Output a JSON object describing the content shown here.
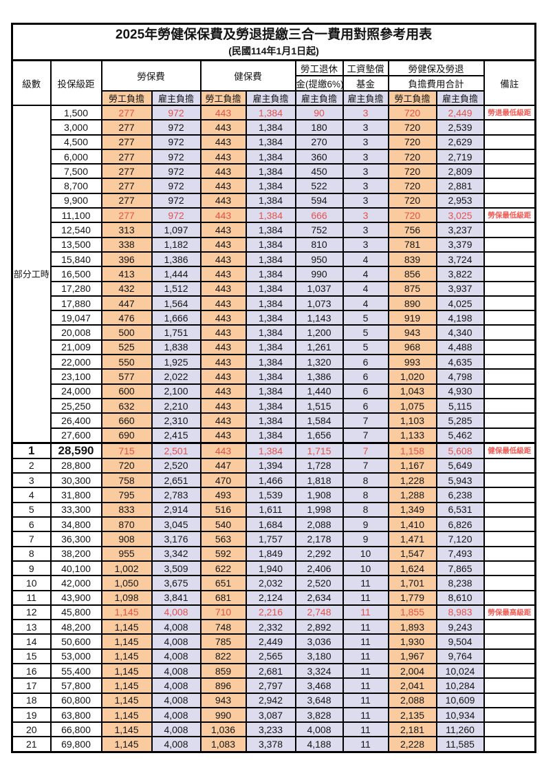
{
  "title": "2025年勞健保保費及勞退提繳三合一費用對照參考用表",
  "subtitle": "(民國114年1月1日起)",
  "header": {
    "level": "級數",
    "salary": "投保級距",
    "labor": "勞保費",
    "health": "健保費",
    "pension_line1": "勞工退休",
    "pension_line2": "金(提繳6%)",
    "wage_fund_line1": "工資墊償",
    "wage_fund_line2": "基金",
    "total_line1": "勞健保及勞退",
    "total_line2": "負擔費用合計",
    "remark": "備註",
    "employee": "勞工負擔",
    "employer": "雇主負擔"
  },
  "part_time_label": "部分工時",
  "part_time_rowspan": 23,
  "colors": {
    "employee_bg": "#F9CB9E",
    "employer_bg": "#DDDBEE",
    "highlight_red": "#E4524B",
    "remark_red": "#F05B54",
    "border": "#000000"
  },
  "rows": [
    {
      "level": "",
      "salary": "1,500",
      "labor_emp": "277",
      "labor_er": "972",
      "health_emp": "443",
      "health_er": "1,384",
      "pension_er": "90",
      "fund_er": "3",
      "total_emp": "720",
      "total_er": "2,449",
      "remark": "勞退最低級距",
      "highlight": true,
      "emphasis": false,
      "thick_top": false
    },
    {
      "level": "",
      "salary": "3,000",
      "labor_emp": "277",
      "labor_er": "972",
      "health_emp": "443",
      "health_er": "1,384",
      "pension_er": "180",
      "fund_er": "3",
      "total_emp": "720",
      "total_er": "2,539",
      "remark": "",
      "highlight": false,
      "emphasis": false,
      "thick_top": false
    },
    {
      "level": "",
      "salary": "4,500",
      "labor_emp": "277",
      "labor_er": "972",
      "health_emp": "443",
      "health_er": "1,384",
      "pension_er": "270",
      "fund_er": "3",
      "total_emp": "720",
      "total_er": "2,629",
      "remark": "",
      "highlight": false,
      "emphasis": false,
      "thick_top": false
    },
    {
      "level": "",
      "salary": "6,000",
      "labor_emp": "277",
      "labor_er": "972",
      "health_emp": "443",
      "health_er": "1,384",
      "pension_er": "360",
      "fund_er": "3",
      "total_emp": "720",
      "total_er": "2,719",
      "remark": "",
      "highlight": false,
      "emphasis": false,
      "thick_top": false
    },
    {
      "level": "",
      "salary": "7,500",
      "labor_emp": "277",
      "labor_er": "972",
      "health_emp": "443",
      "health_er": "1,384",
      "pension_er": "450",
      "fund_er": "3",
      "total_emp": "720",
      "total_er": "2,809",
      "remark": "",
      "highlight": false,
      "emphasis": false,
      "thick_top": false
    },
    {
      "level": "",
      "salary": "8,700",
      "labor_emp": "277",
      "labor_er": "972",
      "health_emp": "443",
      "health_er": "1,384",
      "pension_er": "522",
      "fund_er": "3",
      "total_emp": "720",
      "total_er": "2,881",
      "remark": "",
      "highlight": false,
      "emphasis": false,
      "thick_top": false
    },
    {
      "level": "",
      "salary": "9,900",
      "labor_emp": "277",
      "labor_er": "972",
      "health_emp": "443",
      "health_er": "1,384",
      "pension_er": "594",
      "fund_er": "3",
      "total_emp": "720",
      "total_er": "2,953",
      "remark": "",
      "highlight": false,
      "emphasis": false,
      "thick_top": false
    },
    {
      "level": "",
      "salary": "11,100",
      "labor_emp": "277",
      "labor_er": "972",
      "health_emp": "443",
      "health_er": "1,384",
      "pension_er": "666",
      "fund_er": "3",
      "total_emp": "720",
      "total_er": "3,025",
      "remark": "勞保最低級距",
      "highlight": true,
      "emphasis": false,
      "thick_top": false
    },
    {
      "level": "",
      "salary": "12,540",
      "labor_emp": "313",
      "labor_er": "1,097",
      "health_emp": "443",
      "health_er": "1,384",
      "pension_er": "752",
      "fund_er": "3",
      "total_emp": "756",
      "total_er": "3,237",
      "remark": "",
      "highlight": false,
      "emphasis": false,
      "thick_top": false
    },
    {
      "level": "",
      "salary": "13,500",
      "labor_emp": "338",
      "labor_er": "1,182",
      "health_emp": "443",
      "health_er": "1,384",
      "pension_er": "810",
      "fund_er": "3",
      "total_emp": "781",
      "total_er": "3,379",
      "remark": "",
      "highlight": false,
      "emphasis": false,
      "thick_top": false
    },
    {
      "level": "",
      "salary": "15,840",
      "labor_emp": "396",
      "labor_er": "1,386",
      "health_emp": "443",
      "health_er": "1,384",
      "pension_er": "950",
      "fund_er": "4",
      "total_emp": "839",
      "total_er": "3,724",
      "remark": "",
      "highlight": false,
      "emphasis": false,
      "thick_top": false
    },
    {
      "level": "",
      "salary": "16,500",
      "labor_emp": "413",
      "labor_er": "1,444",
      "health_emp": "443",
      "health_er": "1,384",
      "pension_er": "990",
      "fund_er": "4",
      "total_emp": "856",
      "total_er": "3,822",
      "remark": "",
      "highlight": false,
      "emphasis": false,
      "thick_top": false
    },
    {
      "level": "",
      "salary": "17,280",
      "labor_emp": "432",
      "labor_er": "1,512",
      "health_emp": "443",
      "health_er": "1,384",
      "pension_er": "1,037",
      "fund_er": "4",
      "total_emp": "875",
      "total_er": "3,937",
      "remark": "",
      "highlight": false,
      "emphasis": false,
      "thick_top": false
    },
    {
      "level": "",
      "salary": "17,880",
      "labor_emp": "447",
      "labor_er": "1,564",
      "health_emp": "443",
      "health_er": "1,384",
      "pension_er": "1,073",
      "fund_er": "4",
      "total_emp": "890",
      "total_er": "4,025",
      "remark": "",
      "highlight": false,
      "emphasis": false,
      "thick_top": false
    },
    {
      "level": "",
      "salary": "19,047",
      "labor_emp": "476",
      "labor_er": "1,666",
      "health_emp": "443",
      "health_er": "1,384",
      "pension_er": "1,143",
      "fund_er": "5",
      "total_emp": "919",
      "total_er": "4,198",
      "remark": "",
      "highlight": false,
      "emphasis": false,
      "thick_top": false
    },
    {
      "level": "",
      "salary": "20,008",
      "labor_emp": "500",
      "labor_er": "1,751",
      "health_emp": "443",
      "health_er": "1,384",
      "pension_er": "1,200",
      "fund_er": "5",
      "total_emp": "943",
      "total_er": "4,340",
      "remark": "",
      "highlight": false,
      "emphasis": false,
      "thick_top": false
    },
    {
      "level": "",
      "salary": "21,009",
      "labor_emp": "525",
      "labor_er": "1,838",
      "health_emp": "443",
      "health_er": "1,384",
      "pension_er": "1,261",
      "fund_er": "5",
      "total_emp": "968",
      "total_er": "4,488",
      "remark": "",
      "highlight": false,
      "emphasis": false,
      "thick_top": false
    },
    {
      "level": "",
      "salary": "22,000",
      "labor_emp": "550",
      "labor_er": "1,925",
      "health_emp": "443",
      "health_er": "1,384",
      "pension_er": "1,320",
      "fund_er": "6",
      "total_emp": "993",
      "total_er": "4,635",
      "remark": "",
      "highlight": false,
      "emphasis": false,
      "thick_top": false
    },
    {
      "level": "",
      "salary": "23,100",
      "labor_emp": "577",
      "labor_er": "2,022",
      "health_emp": "443",
      "health_er": "1,384",
      "pension_er": "1,386",
      "fund_er": "6",
      "total_emp": "1,020",
      "total_er": "4,798",
      "remark": "",
      "highlight": false,
      "emphasis": false,
      "thick_top": false
    },
    {
      "level": "",
      "salary": "24,000",
      "labor_emp": "600",
      "labor_er": "2,100",
      "health_emp": "443",
      "health_er": "1,384",
      "pension_er": "1,440",
      "fund_er": "6",
      "total_emp": "1,043",
      "total_er": "4,930",
      "remark": "",
      "highlight": false,
      "emphasis": false,
      "thick_top": false
    },
    {
      "level": "",
      "salary": "25,250",
      "labor_emp": "632",
      "labor_er": "2,210",
      "health_emp": "443",
      "health_er": "1,384",
      "pension_er": "1,515",
      "fund_er": "6",
      "total_emp": "1,075",
      "total_er": "5,115",
      "remark": "",
      "highlight": false,
      "emphasis": false,
      "thick_top": false
    },
    {
      "level": "",
      "salary": "26,400",
      "labor_emp": "660",
      "labor_er": "2,310",
      "health_emp": "443",
      "health_er": "1,384",
      "pension_er": "1,584",
      "fund_er": "7",
      "total_emp": "1,103",
      "total_er": "5,285",
      "remark": "",
      "highlight": false,
      "emphasis": false,
      "thick_top": false
    },
    {
      "level": "",
      "salary": "27,600",
      "labor_emp": "690",
      "labor_er": "2,415",
      "health_emp": "443",
      "health_er": "1,384",
      "pension_er": "1,656",
      "fund_er": "7",
      "total_emp": "1,133",
      "total_er": "5,462",
      "remark": "",
      "highlight": false,
      "emphasis": false,
      "thick_top": false
    },
    {
      "level": "1",
      "salary": "28,590",
      "labor_emp": "715",
      "labor_er": "2,501",
      "health_emp": "443",
      "health_er": "1,384",
      "pension_er": "1,715",
      "fund_er": "7",
      "total_emp": "1,158",
      "total_er": "5,608",
      "remark": "健保最低級距",
      "highlight": true,
      "emphasis": true,
      "thick_top": true
    },
    {
      "level": "2",
      "salary": "28,800",
      "labor_emp": "720",
      "labor_er": "2,520",
      "health_emp": "447",
      "health_er": "1,394",
      "pension_er": "1,728",
      "fund_er": "7",
      "total_emp": "1,167",
      "total_er": "5,649",
      "remark": "",
      "highlight": false,
      "emphasis": false,
      "thick_top": false
    },
    {
      "level": "3",
      "salary": "30,300",
      "labor_emp": "758",
      "labor_er": "2,651",
      "health_emp": "470",
      "health_er": "1,466",
      "pension_er": "1,818",
      "fund_er": "8",
      "total_emp": "1,228",
      "total_er": "5,943",
      "remark": "",
      "highlight": false,
      "emphasis": false,
      "thick_top": false
    },
    {
      "level": "4",
      "salary": "31,800",
      "labor_emp": "795",
      "labor_er": "2,783",
      "health_emp": "493",
      "health_er": "1,539",
      "pension_er": "1,908",
      "fund_er": "8",
      "total_emp": "1,288",
      "total_er": "6,238",
      "remark": "",
      "highlight": false,
      "emphasis": false,
      "thick_top": false
    },
    {
      "level": "5",
      "salary": "33,300",
      "labor_emp": "833",
      "labor_er": "2,914",
      "health_emp": "516",
      "health_er": "1,611",
      "pension_er": "1,998",
      "fund_er": "8",
      "total_emp": "1,349",
      "total_er": "6,531",
      "remark": "",
      "highlight": false,
      "emphasis": false,
      "thick_top": false
    },
    {
      "level": "6",
      "salary": "34,800",
      "labor_emp": "870",
      "labor_er": "3,045",
      "health_emp": "540",
      "health_er": "1,684",
      "pension_er": "2,088",
      "fund_er": "9",
      "total_emp": "1,410",
      "total_er": "6,826",
      "remark": "",
      "highlight": false,
      "emphasis": false,
      "thick_top": false
    },
    {
      "level": "7",
      "salary": "36,300",
      "labor_emp": "908",
      "labor_er": "3,176",
      "health_emp": "563",
      "health_er": "1,757",
      "pension_er": "2,178",
      "fund_er": "9",
      "total_emp": "1,471",
      "total_er": "7,120",
      "remark": "",
      "highlight": false,
      "emphasis": false,
      "thick_top": false
    },
    {
      "level": "8",
      "salary": "38,200",
      "labor_emp": "955",
      "labor_er": "3,342",
      "health_emp": "592",
      "health_er": "1,849",
      "pension_er": "2,292",
      "fund_er": "10",
      "total_emp": "1,547",
      "total_er": "7,493",
      "remark": "",
      "highlight": false,
      "emphasis": false,
      "thick_top": false
    },
    {
      "level": "9",
      "salary": "40,100",
      "labor_emp": "1,002",
      "labor_er": "3,509",
      "health_emp": "622",
      "health_er": "1,940",
      "pension_er": "2,406",
      "fund_er": "10",
      "total_emp": "1,624",
      "total_er": "7,865",
      "remark": "",
      "highlight": false,
      "emphasis": false,
      "thick_top": false
    },
    {
      "level": "10",
      "salary": "42,000",
      "labor_emp": "1,050",
      "labor_er": "3,675",
      "health_emp": "651",
      "health_er": "2,032",
      "pension_er": "2,520",
      "fund_er": "11",
      "total_emp": "1,701",
      "total_er": "8,238",
      "remark": "",
      "highlight": false,
      "emphasis": false,
      "thick_top": false
    },
    {
      "level": "11",
      "salary": "43,900",
      "labor_emp": "1,098",
      "labor_er": "3,841",
      "health_emp": "681",
      "health_er": "2,124",
      "pension_er": "2,634",
      "fund_er": "11",
      "total_emp": "1,779",
      "total_er": "8,610",
      "remark": "",
      "highlight": false,
      "emphasis": false,
      "thick_top": false
    },
    {
      "level": "12",
      "salary": "45,800",
      "labor_emp": "1,145",
      "labor_er": "4,008",
      "health_emp": "710",
      "health_er": "2,216",
      "pension_er": "2,748",
      "fund_er": "11",
      "total_emp": "1,855",
      "total_er": "8,983",
      "remark": "勞保最高級距",
      "highlight": true,
      "emphasis": false,
      "thick_top": false
    },
    {
      "level": "13",
      "salary": "48,200",
      "labor_emp": "1,145",
      "labor_er": "4,008",
      "health_emp": "748",
      "health_er": "2,332",
      "pension_er": "2,892",
      "fund_er": "11",
      "total_emp": "1,893",
      "total_er": "9,243",
      "remark": "",
      "highlight": false,
      "emphasis": false,
      "thick_top": false
    },
    {
      "level": "14",
      "salary": "50,600",
      "labor_emp": "1,145",
      "labor_er": "4,008",
      "health_emp": "785",
      "health_er": "2,449",
      "pension_er": "3,036",
      "fund_er": "11",
      "total_emp": "1,930",
      "total_er": "9,504",
      "remark": "",
      "highlight": false,
      "emphasis": false,
      "thick_top": false
    },
    {
      "level": "15",
      "salary": "53,000",
      "labor_emp": "1,145",
      "labor_er": "4,008",
      "health_emp": "822",
      "health_er": "2,565",
      "pension_er": "3,180",
      "fund_er": "11",
      "total_emp": "1,967",
      "total_er": "9,764",
      "remark": "",
      "highlight": false,
      "emphasis": false,
      "thick_top": false
    },
    {
      "level": "16",
      "salary": "55,400",
      "labor_emp": "1,145",
      "labor_er": "4,008",
      "health_emp": "859",
      "health_er": "2,681",
      "pension_er": "3,324",
      "fund_er": "11",
      "total_emp": "2,004",
      "total_er": "10,024",
      "remark": "",
      "highlight": false,
      "emphasis": false,
      "thick_top": false
    },
    {
      "level": "17",
      "salary": "57,800",
      "labor_emp": "1,145",
      "labor_er": "4,008",
      "health_emp": "896",
      "health_er": "2,797",
      "pension_er": "3,468",
      "fund_er": "11",
      "total_emp": "2,041",
      "total_er": "10,284",
      "remark": "",
      "highlight": false,
      "emphasis": false,
      "thick_top": false
    },
    {
      "level": "18",
      "salary": "60,800",
      "labor_emp": "1,145",
      "labor_er": "4,008",
      "health_emp": "943",
      "health_er": "2,942",
      "pension_er": "3,648",
      "fund_er": "11",
      "total_emp": "2,088",
      "total_er": "10,609",
      "remark": "",
      "highlight": false,
      "emphasis": false,
      "thick_top": false
    },
    {
      "level": "19",
      "salary": "63,800",
      "labor_emp": "1,145",
      "labor_er": "4,008",
      "health_emp": "990",
      "health_er": "3,087",
      "pension_er": "3,828",
      "fund_er": "11",
      "total_emp": "2,135",
      "total_er": "10,934",
      "remark": "",
      "highlight": false,
      "emphasis": false,
      "thick_top": false
    },
    {
      "level": "20",
      "salary": "66,800",
      "labor_emp": "1,145",
      "labor_er": "4,008",
      "health_emp": "1,036",
      "health_er": "3,233",
      "pension_er": "4,008",
      "fund_er": "11",
      "total_emp": "2,181",
      "total_er": "11,260",
      "remark": "",
      "highlight": false,
      "emphasis": false,
      "thick_top": false
    },
    {
      "level": "21",
      "salary": "69,800",
      "labor_emp": "1,145",
      "labor_er": "4,008",
      "health_emp": "1,083",
      "health_er": "3,378",
      "pension_er": "4,188",
      "fund_er": "11",
      "total_emp": "2,228",
      "total_er": "11,585",
      "remark": "",
      "highlight": false,
      "emphasis": false,
      "thick_top": false
    }
  ]
}
